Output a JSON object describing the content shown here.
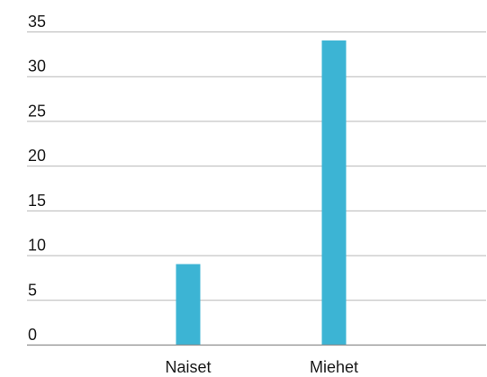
{
  "chart_data": {
    "type": "bar",
    "categories": [
      "Naiset",
      "Miehet"
    ],
    "values": [
      9,
      34
    ],
    "ylim": [
      0,
      35
    ],
    "yticks": [
      0,
      5,
      10,
      15,
      20,
      25,
      30,
      35
    ],
    "grid": true,
    "legend": "none",
    "colors": {
      "bar": "#3cb4d4",
      "grid": "#b7b7b7",
      "axis": "#8c8c8c",
      "text": "#1a1a1a"
    }
  }
}
